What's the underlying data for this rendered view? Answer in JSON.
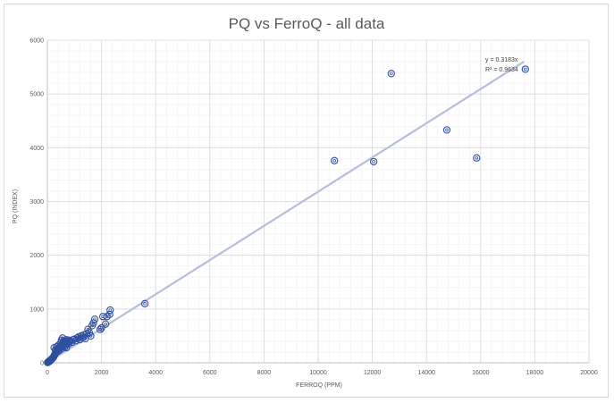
{
  "chart_data": {
    "type": "scatter",
    "title": "PQ vs FerroQ - all data",
    "xlabel": "FERROQ (PPM)",
    "ylabel": "PQ (INDEX)",
    "xlim": [
      0,
      20000
    ],
    "ylim": [
      0,
      6000
    ],
    "xticks": [
      0,
      2000,
      4000,
      6000,
      8000,
      10000,
      12000,
      14000,
      16000,
      18000,
      20000
    ],
    "yticks": [
      0,
      1000,
      2000,
      3000,
      4000,
      5000,
      6000
    ],
    "grid": true,
    "minor_grid": true,
    "marker_color": "#2f4f9e",
    "trendline_color": "#b4bfdc",
    "trendline": {
      "slope": 0.3183,
      "x_range": [
        0,
        17600
      ],
      "equation": "y = 0.3183x",
      "r_squared": "R² = 0.9634"
    },
    "points": [
      [
        10,
        5
      ],
      [
        20,
        10
      ],
      [
        30,
        15
      ],
      [
        40,
        20
      ],
      [
        50,
        25
      ],
      [
        60,
        20
      ],
      [
        70,
        30
      ],
      [
        80,
        35
      ],
      [
        90,
        30
      ],
      [
        100,
        40
      ],
      [
        110,
        45
      ],
      [
        120,
        50
      ],
      [
        130,
        55
      ],
      [
        140,
        60
      ],
      [
        150,
        65
      ],
      [
        160,
        70
      ],
      [
        170,
        75
      ],
      [
        180,
        80
      ],
      [
        190,
        85
      ],
      [
        200,
        90
      ],
      [
        210,
        95
      ],
      [
        220,
        100
      ],
      [
        230,
        110
      ],
      [
        240,
        120
      ],
      [
        250,
        130
      ],
      [
        260,
        140
      ],
      [
        270,
        150
      ],
      [
        280,
        160
      ],
      [
        290,
        170
      ],
      [
        300,
        180
      ],
      [
        320,
        200
      ],
      [
        340,
        220
      ],
      [
        360,
        240
      ],
      [
        380,
        210
      ],
      [
        400,
        250
      ],
      [
        420,
        270
      ],
      [
        440,
        230
      ],
      [
        460,
        300
      ],
      [
        480,
        280
      ],
      [
        500,
        320
      ],
      [
        520,
        260
      ],
      [
        540,
        340
      ],
      [
        560,
        300
      ],
      [
        580,
        360
      ],
      [
        600,
        330
      ],
      [
        620,
        380
      ],
      [
        650,
        300
      ],
      [
        680,
        340
      ],
      [
        700,
        280
      ],
      [
        720,
        400
      ],
      [
        750,
        370
      ],
      [
        780,
        350
      ],
      [
        800,
        420
      ],
      [
        850,
        400
      ],
      [
        900,
        380
      ],
      [
        950,
        430
      ],
      [
        1000,
        440
      ],
      [
        1050,
        410
      ],
      [
        1100,
        460
      ],
      [
        1150,
        480
      ],
      [
        1200,
        430
      ],
      [
        1250,
        500
      ],
      [
        1300,
        470
      ],
      [
        1350,
        520
      ],
      [
        1400,
        450
      ],
      [
        1450,
        540
      ],
      [
        1500,
        620
      ],
      [
        1550,
        560
      ],
      [
        1600,
        500
      ],
      [
        1650,
        690
      ],
      [
        1700,
        740
      ],
      [
        1750,
        810
      ],
      [
        1950,
        620
      ],
      [
        2000,
        650
      ],
      [
        2050,
        860
      ],
      [
        2150,
        720
      ],
      [
        2200,
        860
      ],
      [
        2300,
        900
      ],
      [
        2320,
        980
      ],
      [
        3600,
        1100
      ],
      [
        250,
        280
      ],
      [
        300,
        240
      ],
      [
        350,
        300
      ],
      [
        420,
        330
      ],
      [
        480,
        360
      ],
      [
        520,
        420
      ],
      [
        560,
        460
      ],
      [
        600,
        400
      ],
      [
        650,
        380
      ],
      [
        700,
        430
      ],
      [
        10600,
        3760
      ],
      [
        12050,
        3740
      ],
      [
        12700,
        5380
      ],
      [
        14750,
        4330
      ],
      [
        15850,
        3810
      ],
      [
        17650,
        5460
      ]
    ]
  }
}
